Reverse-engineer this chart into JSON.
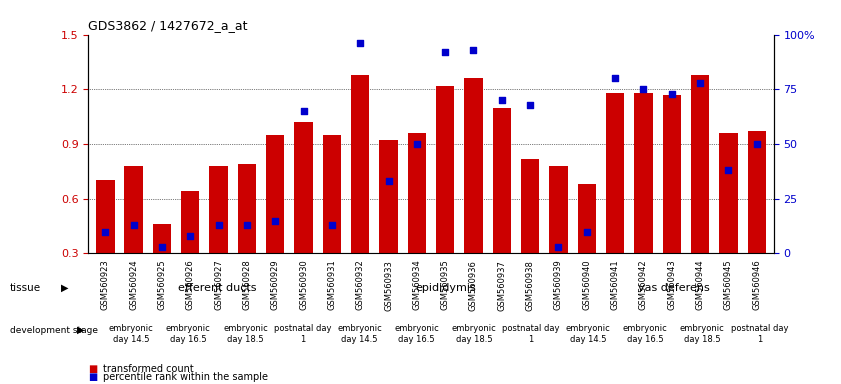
{
  "title": "GDS3862 / 1427672_a_at",
  "samples": [
    "GSM560923",
    "GSM560924",
    "GSM560925",
    "GSM560926",
    "GSM560927",
    "GSM560928",
    "GSM560929",
    "GSM560930",
    "GSM560931",
    "GSM560932",
    "GSM560933",
    "GSM560934",
    "GSM560935",
    "GSM560936",
    "GSM560937",
    "GSM560938",
    "GSM560939",
    "GSM560940",
    "GSM560941",
    "GSM560942",
    "GSM560943",
    "GSM560944",
    "GSM560945",
    "GSM560946"
  ],
  "red_values": [
    0.7,
    0.78,
    0.46,
    0.64,
    0.78,
    0.79,
    0.95,
    1.02,
    0.95,
    1.28,
    0.92,
    0.96,
    1.22,
    1.26,
    1.1,
    0.82,
    0.78,
    0.68,
    1.18,
    1.18,
    1.17,
    1.28,
    0.96,
    0.97
  ],
  "blue_percentile": [
    10,
    13,
    3,
    8,
    13,
    13,
    15,
    65,
    13,
    96,
    33,
    50,
    92,
    93,
    70,
    68,
    3,
    10,
    80,
    75,
    73,
    78,
    38,
    50
  ],
  "ylim_left": [
    0.3,
    1.5
  ],
  "ylim_right": [
    0,
    100
  ],
  "yticks_left": [
    0.3,
    0.6,
    0.9,
    1.2,
    1.5
  ],
  "yticks_right": [
    0,
    25,
    50,
    75,
    100
  ],
  "tissues": [
    {
      "label": "efferent ducts",
      "start": 0,
      "end": 7,
      "color": "#90EE90"
    },
    {
      "label": "epididymis",
      "start": 8,
      "end": 15,
      "color": "#DA70D6"
    },
    {
      "label": "vas deferens",
      "start": 16,
      "end": 23,
      "color": "#32CD32"
    }
  ],
  "dev_stages": [
    {
      "label": "embryonic\nday 14.5",
      "start": 0,
      "end": 1,
      "color": "#90EE90"
    },
    {
      "label": "embryonic\nday 16.5",
      "start": 2,
      "end": 3,
      "color": "#90EE90"
    },
    {
      "label": "embryonic\nday 18.5",
      "start": 4,
      "end": 5,
      "color": "#DA70D6"
    },
    {
      "label": "postnatal day\n1",
      "start": 6,
      "end": 7,
      "color": "#DA70D6"
    },
    {
      "label": "embryonic\nday 14.5",
      "start": 8,
      "end": 9,
      "color": "#90EE90"
    },
    {
      "label": "embryonic\nday 16.5",
      "start": 10,
      "end": 11,
      "color": "#90EE90"
    },
    {
      "label": "embryonic\nday 18.5",
      "start": 12,
      "end": 13,
      "color": "#DA70D6"
    },
    {
      "label": "postnatal day\n1",
      "start": 14,
      "end": 15,
      "color": "#DA70D6"
    },
    {
      "label": "embryonic\nday 14.5",
      "start": 16,
      "end": 17,
      "color": "#90EE90"
    },
    {
      "label": "embryonic\nday 16.5",
      "start": 18,
      "end": 19,
      "color": "#90EE90"
    },
    {
      "label": "embryonic\nday 18.5",
      "start": 20,
      "end": 21,
      "color": "#DA70D6"
    },
    {
      "label": "postnatal day\n1",
      "start": 22,
      "end": 23,
      "color": "#DA70D6"
    }
  ],
  "bar_color": "#CC0000",
  "dot_color": "#0000CC",
  "background_color": "#ffffff",
  "tick_label_color_left": "#CC0000",
  "tick_label_color_right": "#0000CC",
  "ymin": 0.3,
  "ymax": 1.5,
  "pct_min": 0,
  "pct_max": 100
}
